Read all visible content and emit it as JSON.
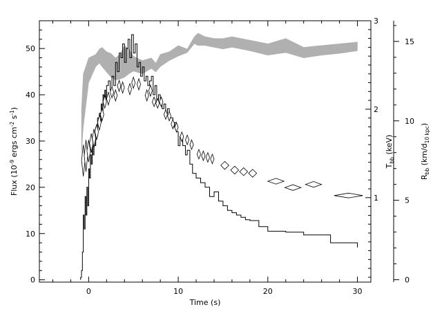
{
  "chart_data": {
    "type": "line",
    "xlabel": "Time (s)",
    "ylabel": {
      "main": "Flux (10",
      "exp1": "-9",
      "mid1": " ergs cm",
      "exp2": "-2",
      "mid2": " s",
      "exp3": "-1",
      "end": ")"
    },
    "y2label": {
      "main": "T",
      "sub": "bb",
      "end": " (keV)"
    },
    "y3label": {
      "main": "R",
      "sub": "bb",
      "mid": " (km/d",
      "sub2": "10 kpc",
      "end": ")"
    },
    "xlim": [
      -5.5,
      31.5
    ],
    "ylim": [
      -0.5,
      56
    ],
    "y2lim": [
      0.045,
      3.0
    ],
    "y3lim": [
      -0.15,
      16.3
    ],
    "grid": false,
    "x_ticks": [
      "0",
      "10",
      "20",
      "30"
    ],
    "y_ticks": [
      "0",
      "10",
      "20",
      "30",
      "40",
      "50"
    ],
    "y2_ticks": [
      "1",
      "2",
      "3"
    ],
    "y3_ticks": [
      "0",
      "5",
      "10",
      "15"
    ],
    "flux_series": {
      "name": "",
      "style": "step",
      "color": "#000000",
      "x_edges": [
        -0.9,
        -0.8,
        -0.7,
        -0.6,
        -0.5,
        -0.4,
        -0.3,
        -0.2,
        -0.1,
        0.0,
        0.1,
        0.2,
        0.3,
        0.4,
        0.5,
        0.6,
        0.7,
        0.8,
        0.9,
        1.0,
        1.1,
        1.2,
        1.3,
        1.4,
        1.5,
        1.6,
        1.7,
        1.8,
        1.9,
        2.0,
        2.2,
        2.4,
        2.6,
        2.8,
        3.0,
        3.2,
        3.4,
        3.6,
        3.8,
        4.0,
        4.2,
        4.4,
        4.6,
        4.8,
        5.0,
        5.2,
        5.4,
        5.6,
        5.8,
        6.0,
        6.2,
        6.4,
        6.6,
        6.8,
        7.0,
        7.2,
        7.4,
        7.6,
        7.8,
        8.0,
        8.2,
        8.4,
        8.6,
        8.8,
        9.0,
        9.2,
        9.4,
        9.6,
        9.8,
        10.0,
        10.2,
        10.5,
        10.8,
        11.0,
        11.3,
        11.6,
        12.0,
        12.5,
        13.0,
        13.5,
        14.0,
        14.5,
        15.0,
        15.5,
        16.0,
        16.5,
        17.0,
        17.5,
        18.0,
        19.0,
        20.0,
        22.0,
        24.0,
        27.0,
        30.0
      ],
      "values": [
        0.5,
        2,
        6,
        14,
        11,
        18,
        14,
        20,
        16,
        24,
        22,
        27,
        25,
        29,
        27,
        31,
        29,
        33,
        31,
        35,
        33,
        36,
        34,
        38,
        36,
        40,
        38,
        41,
        39,
        42,
        43,
        41,
        44,
        42,
        47,
        45,
        49,
        48,
        51,
        47,
        50,
        52,
        48,
        53,
        49,
        51,
        46,
        47,
        44,
        46,
        43,
        44,
        42,
        43,
        44,
        40,
        42,
        38,
        40,
        39,
        37,
        38,
        36,
        37,
        35,
        35,
        33,
        34,
        32,
        29,
        31,
        29,
        27,
        28,
        25,
        23,
        22,
        21,
        20,
        18,
        19,
        17,
        16,
        15,
        14.5,
        14,
        13.5,
        13,
        12.8,
        11.5,
        10.5,
        10.3,
        9.7,
        8,
        7
      ]
    },
    "temperature_band": {
      "name": "",
      "color": "#b0b0b0",
      "x": [
        -0.8,
        -0.6,
        0.0,
        0.8,
        1.2,
        1.5,
        2.0,
        2.5,
        3.0,
        3.5,
        4.0,
        4.5,
        5.0,
        6.0,
        7.0,
        7.5,
        8.0,
        9.0,
        10.0,
        11.0,
        11.8,
        12.2,
        13.0,
        14.0,
        15.0,
        16.0,
        17.0,
        18.0,
        20.0,
        22.0,
        24.0,
        26.0,
        28.0,
        30.0
      ],
      "upper": [
        2.0,
        2.4,
        2.58,
        2.62,
        2.68,
        2.7,
        2.65,
        2.63,
        2.58,
        2.62,
        2.72,
        2.68,
        2.6,
        2.55,
        2.58,
        2.52,
        2.62,
        2.65,
        2.72,
        2.68,
        2.82,
        2.86,
        2.82,
        2.8,
        2.8,
        2.82,
        2.8,
        2.78,
        2.74,
        2.8,
        2.7,
        2.72,
        2.74,
        2.76
      ],
      "lower": [
        1.5,
        1.8,
        2.3,
        2.48,
        2.52,
        2.48,
        2.42,
        2.36,
        2.33,
        2.34,
        2.36,
        2.4,
        2.43,
        2.4,
        2.46,
        2.42,
        2.48,
        2.55,
        2.6,
        2.64,
        2.74,
        2.72,
        2.72,
        2.7,
        2.68,
        2.7,
        2.68,
        2.66,
        2.61,
        2.64,
        2.58,
        2.61,
        2.63,
        2.66
      ]
    },
    "radius_series": {
      "name": "",
      "marker": "diamond",
      "color": "#000000",
      "points": [
        {
          "x": -0.6,
          "y": 7.5,
          "xerr": 0.1,
          "yerr": 1.0
        },
        {
          "x": -0.3,
          "y": 7.8,
          "xerr": 0.1,
          "yerr": 1.0
        },
        {
          "x": 0.0,
          "y": 8.1,
          "xerr": 0.1,
          "yerr": 0.7
        },
        {
          "x": 0.3,
          "y": 8.6,
          "xerr": 0.1,
          "yerr": 0.6
        },
        {
          "x": 0.6,
          "y": 8.9,
          "xerr": 0.1,
          "yerr": 0.6
        },
        {
          "x": 0.9,
          "y": 9.3,
          "xerr": 0.1,
          "yerr": 0.5
        },
        {
          "x": 1.2,
          "y": 9.9,
          "xerr": 0.1,
          "yerr": 0.5
        },
        {
          "x": 1.5,
          "y": 10.4,
          "xerr": 0.1,
          "yerr": 0.4
        },
        {
          "x": 1.8,
          "y": 11.2,
          "xerr": 0.1,
          "yerr": 0.4
        },
        {
          "x": 2.2,
          "y": 11.4,
          "xerr": 0.15,
          "yerr": 0.4
        },
        {
          "x": 2.6,
          "y": 11.8,
          "xerr": 0.15,
          "yerr": 0.35
        },
        {
          "x": 3.0,
          "y": 11.6,
          "xerr": 0.15,
          "yerr": 0.35
        },
        {
          "x": 3.4,
          "y": 12.2,
          "xerr": 0.15,
          "yerr": 0.35
        },
        {
          "x": 3.8,
          "y": 12.1,
          "xerr": 0.15,
          "yerr": 0.35
        },
        {
          "x": 4.6,
          "y": 12.0,
          "xerr": 0.15,
          "yerr": 0.35
        },
        {
          "x": 5.0,
          "y": 12.4,
          "xerr": 0.15,
          "yerr": 0.35
        },
        {
          "x": 5.6,
          "y": 12.3,
          "xerr": 0.15,
          "yerr": 0.35
        },
        {
          "x": 6.5,
          "y": 11.6,
          "xerr": 0.15,
          "yerr": 0.35
        },
        {
          "x": 6.9,
          "y": 11.9,
          "xerr": 0.15,
          "yerr": 0.35
        },
        {
          "x": 7.3,
          "y": 11.2,
          "xerr": 0.2,
          "yerr": 0.3
        },
        {
          "x": 7.7,
          "y": 11.1,
          "xerr": 0.2,
          "yerr": 0.3
        },
        {
          "x": 8.1,
          "y": 11.2,
          "xerr": 0.2,
          "yerr": 0.3
        },
        {
          "x": 8.6,
          "y": 10.4,
          "xerr": 0.15,
          "yerr": 0.3
        },
        {
          "x": 9.0,
          "y": 10.3,
          "xerr": 0.15,
          "yerr": 0.3
        },
        {
          "x": 9.4,
          "y": 9.8,
          "xerr": 0.15,
          "yerr": 0.3
        },
        {
          "x": 9.8,
          "y": 9.6,
          "xerr": 0.15,
          "yerr": 0.3
        },
        {
          "x": 10.4,
          "y": 9.0,
          "xerr": 0.2,
          "yerr": 0.3
        },
        {
          "x": 11.0,
          "y": 8.8,
          "xerr": 0.2,
          "yerr": 0.3
        },
        {
          "x": 11.5,
          "y": 8.5,
          "xerr": 0.2,
          "yerr": 0.3
        },
        {
          "x": 12.3,
          "y": 7.9,
          "xerr": 0.2,
          "yerr": 0.3
        },
        {
          "x": 12.8,
          "y": 7.8,
          "xerr": 0.2,
          "yerr": 0.3
        },
        {
          "x": 13.3,
          "y": 7.7,
          "xerr": 0.2,
          "yerr": 0.3
        },
        {
          "x": 13.8,
          "y": 7.6,
          "xerr": 0.2,
          "yerr": 0.3
        },
        {
          "x": 15.2,
          "y": 7.2,
          "xerr": 0.45,
          "yerr": 0.25
        },
        {
          "x": 16.3,
          "y": 6.9,
          "xerr": 0.45,
          "yerr": 0.25
        },
        {
          "x": 17.3,
          "y": 6.8,
          "xerr": 0.45,
          "yerr": 0.25
        },
        {
          "x": 18.3,
          "y": 6.7,
          "xerr": 0.45,
          "yerr": 0.25
        },
        {
          "x": 20.9,
          "y": 6.2,
          "xerr": 0.9,
          "yerr": 0.18
        },
        {
          "x": 22.8,
          "y": 5.8,
          "xerr": 0.9,
          "yerr": 0.18
        },
        {
          "x": 25.1,
          "y": 6.0,
          "xerr": 0.9,
          "yerr": 0.18
        },
        {
          "x": 29.0,
          "y": 5.3,
          "xerr": 1.6,
          "yerr": 0.15
        }
      ]
    }
  }
}
